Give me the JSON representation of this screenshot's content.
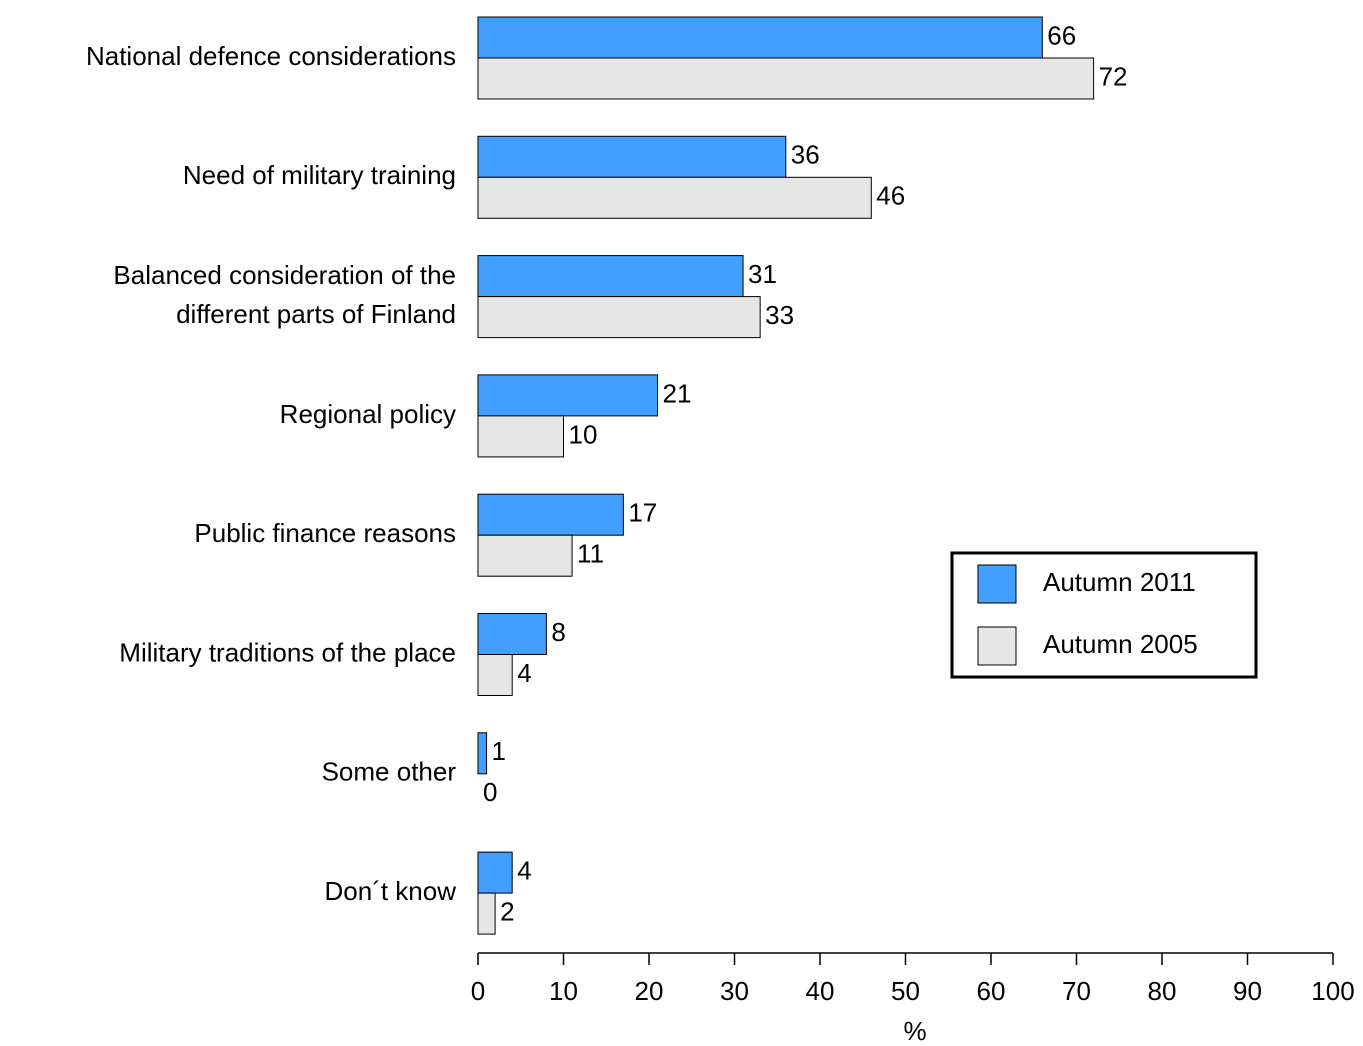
{
  "chart_data": {
    "type": "bar",
    "orientation": "horizontal",
    "categories": [
      "National defence considerations",
      "Need of military training",
      "Balanced consideration of the\ndifferent parts of Finland",
      "Regional policy",
      "Public finance reasons",
      "Military traditions of the place",
      "Some other",
      "Don´t know"
    ],
    "series": [
      {
        "name": "Autumn 2011",
        "color": "#429eff",
        "values": [
          66,
          36,
          31,
          21,
          17,
          8,
          1,
          4
        ]
      },
      {
        "name": "Autumn 2005",
        "color": "#e6e6e6",
        "values": [
          72,
          46,
          33,
          10,
          11,
          4,
          0,
          2
        ]
      }
    ],
    "xlabel": "%",
    "xlim": [
      0,
      100
    ],
    "xticks": [
      0,
      10,
      20,
      30,
      40,
      50,
      60,
      70,
      80,
      90,
      100
    ],
    "grid": false,
    "legend": "right"
  }
}
